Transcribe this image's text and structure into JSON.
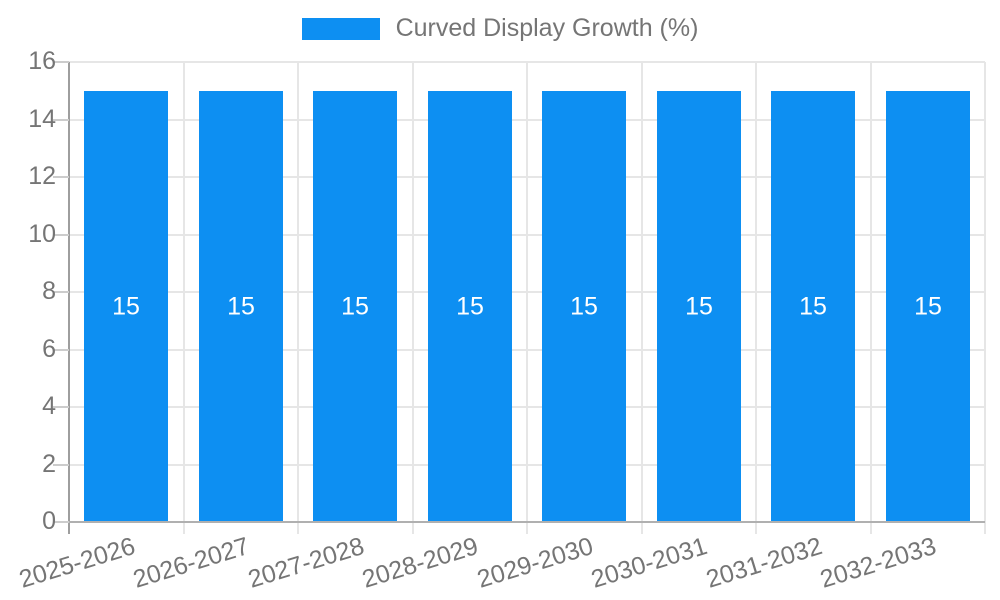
{
  "legend": {
    "label": "Curved Display Growth (%)"
  },
  "colors": {
    "bar": "#0d8ff2",
    "text": "#757575",
    "grid": "#e6e6e6",
    "tick": "#cccccc",
    "axis_y": "#9e9e9e",
    "axis_x": "#b0b0b0",
    "value_label": "#ffffff"
  },
  "chart_data": {
    "type": "bar",
    "title": "Curved Display Growth (%)",
    "categories": [
      "2025-2026",
      "2026-2027",
      "2027-2028",
      "2028-2029",
      "2029-2030",
      "2030-2031",
      "2031-2032",
      "2032-2033"
    ],
    "values": [
      15,
      15,
      15,
      15,
      15,
      15,
      15,
      15
    ],
    "value_labels": [
      "15",
      "15",
      "15",
      "15",
      "15",
      "15",
      "15",
      "15"
    ],
    "xlabel": "",
    "ylabel": "",
    "ylim": [
      0,
      16
    ],
    "ytick_step": 2,
    "yticks": [
      0,
      2,
      4,
      6,
      8,
      10,
      12,
      14,
      16
    ],
    "grid": true,
    "legend_position": "top",
    "x_label_rotation_deg": -17
  }
}
